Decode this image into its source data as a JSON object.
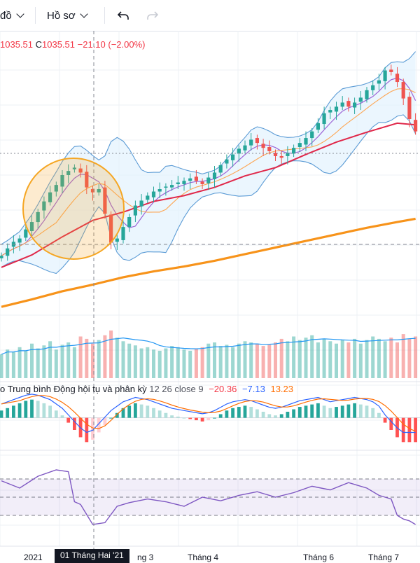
{
  "toolbar": {
    "partial_label": "đồ",
    "profile_label": "Hồ sơ",
    "undo_icon": "undo-arrow-icon",
    "redo_icon": "redo-arrow-icon"
  },
  "legend": {
    "ohlc_prefix_value": "1035.51",
    "close_label": "C",
    "close_value": "1035.51",
    "change": "−21.10 (−2.00%)"
  },
  "macd": {
    "title": "o Trung bình Động hội tụ và phân kỳ",
    "params": "12 26 close 9",
    "hist_value": "−20.36",
    "macd_value": "−7.13",
    "signal_value": "13.23"
  },
  "time_axis": {
    "labels": [
      "2021",
      "ng 3",
      "Tháng 4",
      "Tháng 6",
      "Tháng 7"
    ],
    "crosshair_label": "01 Tháng Hai '21"
  },
  "colors": {
    "up": "#26a69a",
    "down": "#ef5350",
    "ma_slow": "#f7931a",
    "ma_mid": "#e0284a",
    "bollinger": "#5b9bd5",
    "band_fill": "#e3f2fd",
    "macd_line": "#2962ff",
    "signal_line": "#ff6d00",
    "rsi": "#7e57c2",
    "highlight": "#f5a623"
  },
  "chart_data": [
    {
      "type": "candlestick",
      "title": "",
      "note": "Daily price with moving averages and Bollinger Bands",
      "series": [
        {
          "name": "",
          "kind": "close",
          "points": [
            [
              0,
              1009
            ],
            [
              1,
              1018
            ],
            [
              2,
              1026
            ],
            [
              3,
              1030
            ],
            [
              4,
              1041
            ],
            [
              5,
              1050
            ],
            [
              6,
              1062
            ],
            [
              7,
              1075
            ],
            [
              8,
              1086
            ],
            [
              9,
              1095
            ],
            [
              10,
              1107
            ],
            [
              11,
              1112
            ],
            [
              12,
              1116
            ],
            [
              13,
              1110
            ],
            [
              14,
              1092
            ],
            [
              15,
              1086
            ],
            [
              16,
              1090
            ],
            [
              17,
              1060
            ],
            [
              18,
              1025
            ],
            [
              19,
              1030
            ],
            [
              20,
              1044
            ],
            [
              21,
              1056
            ],
            [
              22,
              1070
            ],
            [
              23,
              1076
            ],
            [
              24,
              1082
            ],
            [
              25,
              1087
            ],
            [
              26,
              1090
            ],
            [
              27,
              1093
            ],
            [
              28,
              1095
            ],
            [
              29,
              1098
            ],
            [
              30,
              1100
            ],
            [
              31,
              1103
            ],
            [
              32,
              1100
            ],
            [
              33,
              1096
            ],
            [
              34,
              1104
            ],
            [
              35,
              1110
            ],
            [
              36,
              1119
            ],
            [
              37,
              1126
            ],
            [
              38,
              1132
            ],
            [
              39,
              1139
            ],
            [
              40,
              1143
            ],
            [
              41,
              1150
            ],
            [
              42,
              1146
            ],
            [
              43,
              1140
            ],
            [
              44,
              1136
            ],
            [
              45,
              1130
            ],
            [
              46,
              1128
            ],
            [
              47,
              1134
            ],
            [
              48,
              1140
            ],
            [
              49,
              1146
            ],
            [
              50,
              1152
            ],
            [
              51,
              1160
            ],
            [
              52,
              1170
            ],
            [
              53,
              1182
            ],
            [
              54,
              1186
            ],
            [
              55,
              1190
            ],
            [
              56,
              1195
            ],
            [
              57,
              1190
            ],
            [
              58,
              1195
            ],
            [
              59,
              1201
            ],
            [
              60,
              1210
            ],
            [
              61,
              1216
            ],
            [
              62,
              1222
            ],
            [
              63,
              1234
            ],
            [
              64,
              1232
            ],
            [
              65,
              1220
            ],
            [
              66,
              1200
            ],
            [
              67,
              1175
            ],
            [
              68,
              1160
            ]
          ]
        },
        {
          "name": "",
          "kind": "ma-slow",
          "points": [
            [
              0,
              947
            ],
            [
              5,
              956
            ],
            [
              10,
              966
            ],
            [
              15,
              974
            ],
            [
              20,
              983
            ],
            [
              25,
              990
            ],
            [
              30,
              996
            ],
            [
              35,
              1003
            ],
            [
              40,
              1011
            ],
            [
              45,
              1019
            ],
            [
              50,
              1027
            ],
            [
              55,
              1035
            ],
            [
              60,
              1043
            ],
            [
              65,
              1050
            ],
            [
              68,
              1054
            ]
          ]
        },
        {
          "name": "",
          "kind": "ma-mid",
          "points": [
            [
              0,
              995
            ],
            [
              5,
              1010
            ],
            [
              10,
              1032
            ],
            [
              15,
              1052
            ],
            [
              20,
              1062
            ],
            [
              25,
              1075
            ],
            [
              30,
              1082
            ],
            [
              35,
              1092
            ],
            [
              40,
              1106
            ],
            [
              45,
              1116
            ],
            [
              50,
              1132
            ],
            [
              55,
              1147
            ],
            [
              60,
              1159
            ],
            [
              65,
              1170
            ],
            [
              68,
              1168
            ]
          ]
        }
      ],
      "ylim": [
        920,
        1260
      ],
      "grid": true,
      "annotation": "circle highlight around the dip near 01 Tháng Hai '21"
    },
    {
      "type": "bar",
      "title": "",
      "note": "Volume",
      "values": [
        40,
        48,
        44,
        52,
        46,
        58,
        50,
        55,
        62,
        48,
        56,
        60,
        52,
        70,
        66,
        58,
        64,
        72,
        80,
        68,
        62,
        58,
        55,
        50,
        52,
        48,
        46,
        50,
        54,
        52,
        48,
        46,
        50,
        52,
        58,
        60,
        54,
        56,
        52,
        58,
        62,
        60,
        58,
        54,
        56,
        60,
        66,
        62,
        70,
        64,
        68,
        72,
        60,
        66,
        62,
        58,
        64,
        60,
        66,
        58,
        64,
        70,
        66,
        62,
        68,
        60,
        74,
        66,
        70
      ],
      "ylim": [
        0,
        100
      ]
    },
    {
      "type": "bar",
      "title": "o Trung bình Động hội tụ và phân kỳ",
      "note": "MACD 12 26 close 9",
      "values": [
        6,
        8,
        10,
        12,
        14,
        15,
        14,
        12,
        10,
        6,
        2,
        -4,
        -10,
        -16,
        -20,
        -18,
        -12,
        -6,
        0,
        4,
        8,
        10,
        12,
        11,
        10,
        8,
        6,
        4,
        2,
        1,
        0,
        -1,
        -2,
        -3,
        -2,
        0,
        3,
        6,
        8,
        9,
        10,
        9,
        7,
        5,
        3,
        2,
        3,
        5,
        7,
        9,
        10,
        11,
        12,
        10,
        8,
        9,
        10,
        11,
        12,
        11,
        10,
        8,
        4,
        -4,
        -10,
        -16,
        -20,
        -20,
        -20
      ],
      "ylim": [
        -25,
        20
      ]
    },
    {
      "type": "line",
      "title": "",
      "note": "RSI",
      "x": [
        0,
        3,
        6,
        9,
        11,
        12,
        13,
        15,
        17,
        19,
        21,
        24,
        27,
        30,
        33,
        36,
        39,
        42,
        45,
        48,
        51,
        54,
        57,
        60,
        62,
        63,
        64,
        65,
        66,
        67,
        68
      ],
      "values": [
        68,
        60,
        73,
        80,
        78,
        45,
        42,
        20,
        22,
        40,
        44,
        48,
        45,
        40,
        50,
        46,
        52,
        56,
        50,
        55,
        62,
        58,
        66,
        60,
        52,
        50,
        48,
        30,
        26,
        24,
        20
      ],
      "ylim": [
        0,
        100
      ],
      "reference_lines": [
        70,
        50,
        30
      ]
    }
  ]
}
